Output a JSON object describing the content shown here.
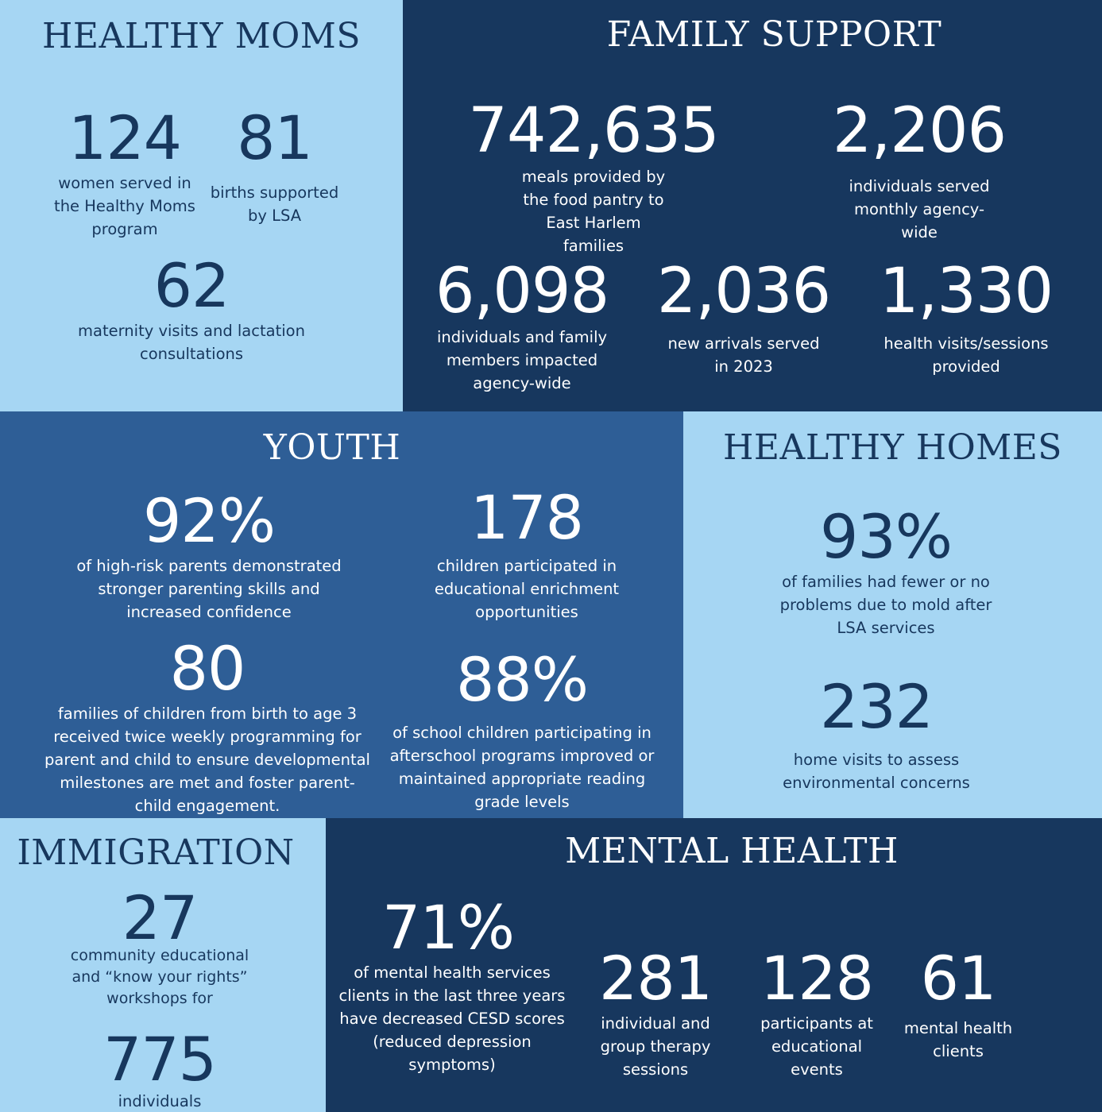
{
  "healthy_moms": {
    "title": "HEALTHY MOMS",
    "stats": [
      {
        "value": "124",
        "label": "women served in the Healthy Moms program"
      },
      {
        "value": "81",
        "label": "births supported by LSA"
      },
      {
        "value": "62",
        "label": "maternity visits and lactation consultations"
      }
    ]
  },
  "family_support": {
    "title": "FAMILY SUPPORT",
    "stats": [
      {
        "value": "742,635",
        "label": "meals provided  by the food pantry to East Harlem families"
      },
      {
        "value": "2,206",
        "label": "individuals served monthly agency-wide"
      },
      {
        "value": "6,098",
        "label": "individuals and family members impacted agency-wide"
      },
      {
        "value": "2,036",
        "label": "new arrivals served in 2023"
      },
      {
        "value": "1,330",
        "label": "health visits/sessions provided"
      }
    ]
  },
  "youth": {
    "title": "YOUTH",
    "stats": [
      {
        "value": "92%",
        "label": "of high-risk parents demonstrated stronger parenting skills and increased confidence"
      },
      {
        "value": "178",
        "label": "children participated in educational enrichment opportunities"
      },
      {
        "value": "80",
        "label": "families of children from birth to age 3 received twice weekly programming for parent and child to ensure developmental milestones are met and foster parent-child engagement."
      },
      {
        "value": "88%",
        "label": "of school children participating in afterschool programs improved or maintained appropriate reading grade levels"
      }
    ]
  },
  "healthy_homes": {
    "title": "HEALTHY HOMES",
    "stats": [
      {
        "value": "93%",
        "label": "of families had fewer or no problems due to mold after LSA services"
      },
      {
        "value": "232",
        "label": "home visits to assess environmental concerns"
      }
    ]
  },
  "immigration": {
    "title": "IMMIGRATION",
    "stats": [
      {
        "value": "27",
        "label": "community educational and “know your rights” workshops for"
      },
      {
        "value": "775",
        "label": "individuals"
      }
    ]
  },
  "mental_health": {
    "title": "MENTAL HEALTH",
    "stats": [
      {
        "value": "71%",
        "label": "of mental health services clients in the last three years have decreased CESD scores (reduced depression symptoms)"
      },
      {
        "value": "281",
        "label": "individual and group therapy sessions"
      },
      {
        "value": "128",
        "label": "participants at educational events"
      },
      {
        "value": "61",
        "label": "mental health clients"
      }
    ]
  },
  "colors": {
    "light_blue": "#a6d6f3",
    "navy": "#17375e",
    "mid_blue": "#2e5e96"
  }
}
